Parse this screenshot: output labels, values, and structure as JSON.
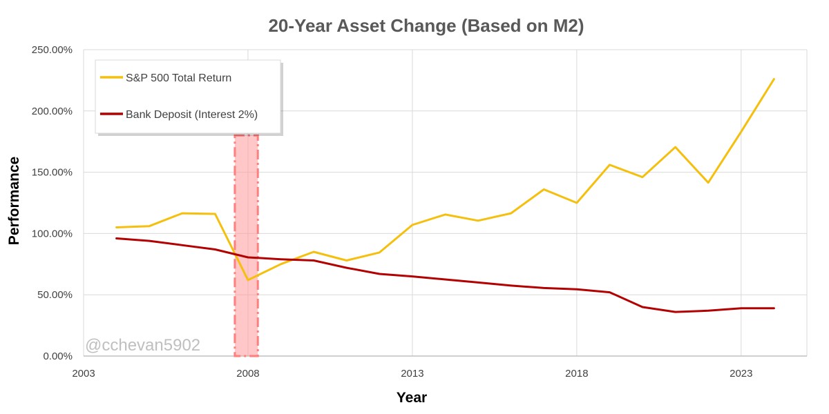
{
  "chart_data": {
    "type": "line",
    "title": "20-Year Asset Change (Based on M2)",
    "xlabel": "Year",
    "ylabel": "Performance",
    "x": [
      2004,
      2005,
      2006,
      2007,
      2008,
      2009,
      2010,
      2011,
      2012,
      2013,
      2014,
      2015,
      2016,
      2017,
      2018,
      2019,
      2020,
      2021,
      2022,
      2023,
      2024
    ],
    "series": [
      {
        "name": "S&P 500 Total Return",
        "color": "#f5bf0e",
        "values": [
          105,
          106,
          116.5,
          116,
          62,
          75,
          85,
          78,
          84.5,
          107,
          115.5,
          110.5,
          116.5,
          136,
          125,
          156,
          146,
          170.5,
          141.5,
          183,
          226
        ]
      },
      {
        "name": "Bank Deposit (Interest 2%)",
        "color": "#b30000",
        "values": [
          96,
          94,
          90.5,
          87,
          80.5,
          79,
          78,
          72,
          67,
          65,
          62.5,
          60,
          57.5,
          55.5,
          54.5,
          52,
          40,
          36,
          37,
          39,
          39
        ]
      }
    ],
    "xlim": [
      2003,
      2025
    ],
    "ylim": [
      0,
      250
    ],
    "x_ticks": [
      "2003",
      "2008",
      "2013",
      "2018",
      "2023"
    ],
    "x_tick_values": [
      2003,
      2008,
      2013,
      2018,
      2023
    ],
    "y_ticks": [
      "0.00%",
      "50.00%",
      "100.00%",
      "150.00%",
      "200.00%",
      "250.00%"
    ],
    "y_tick_values": [
      0,
      50,
      100,
      150,
      200,
      250
    ],
    "highlight": {
      "x_start": 2007.6,
      "x_end": 2008.3,
      "y_top": 180,
      "color": "#ff9999"
    },
    "grid": true,
    "legend_position": "top-left",
    "watermark": "@cchevan5902"
  }
}
